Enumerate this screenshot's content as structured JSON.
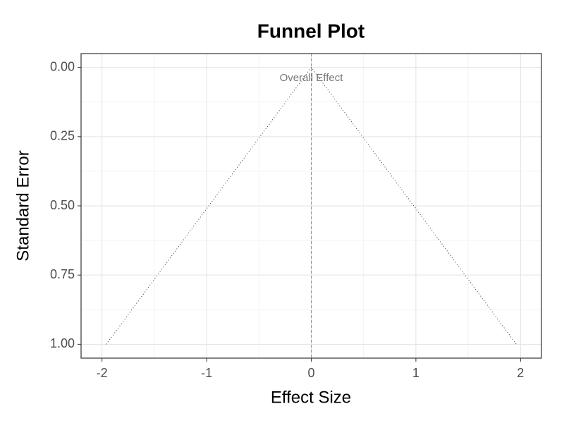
{
  "chart_data": {
    "type": "funnel",
    "title": "Funnel Plot",
    "x_label": "Effect Size",
    "y_label": "Standard Error",
    "funnel": {
      "x": [
        -1.96,
        0,
        1.96
      ],
      "y": [
        1,
        0,
        1
      ]
    },
    "reference_line": {
      "x": 0,
      "label": "Overall Effect"
    },
    "xlim": [
      -2.2,
      2.2
    ],
    "xticks": [
      -2,
      -1,
      0,
      1,
      2
    ],
    "ylim": [
      -0.05,
      1.05
    ],
    "y_reversed": true,
    "yticks": [
      {
        "value": 0,
        "label": "0.00"
      },
      {
        "value": 0.25,
        "label": "0.25"
      },
      {
        "value": 0.5,
        "label": "0.50"
      },
      {
        "value": 0.75,
        "label": "0.75"
      },
      {
        "value": 1,
        "label": "1.00"
      }
    ],
    "grid": true,
    "minor_grid": true,
    "color": "#333333"
  }
}
